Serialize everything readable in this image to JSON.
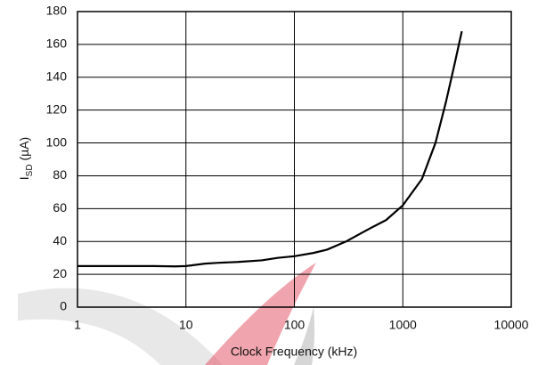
{
  "chart_data": {
    "type": "line",
    "xlabel": "Clock Frequency (kHz)",
    "ylabel": [
      "I",
      "SD",
      " (µA)"
    ],
    "x": [
      1,
      2,
      5,
      8,
      10,
      15,
      20,
      30,
      50,
      70,
      100,
      150,
      200,
      300,
      500,
      700,
      1000,
      1500,
      2000,
      2500,
      3000,
      3500
    ],
    "values": [
      25,
      25,
      25,
      24.8,
      25,
      26.5,
      27,
      27.5,
      28.5,
      30,
      31,
      33,
      35,
      40,
      48,
      53,
      62,
      78,
      100,
      125,
      148,
      168
    ],
    "color": "#000000",
    "xscale": "log",
    "xlim": [
      1,
      10000
    ],
    "xticks": [
      1,
      10,
      100,
      1000,
      10000
    ],
    "ylim": [
      0,
      180
    ],
    "yticks": [
      0,
      20,
      40,
      60,
      80,
      100,
      120,
      140,
      160,
      180
    ],
    "grid": true
  }
}
